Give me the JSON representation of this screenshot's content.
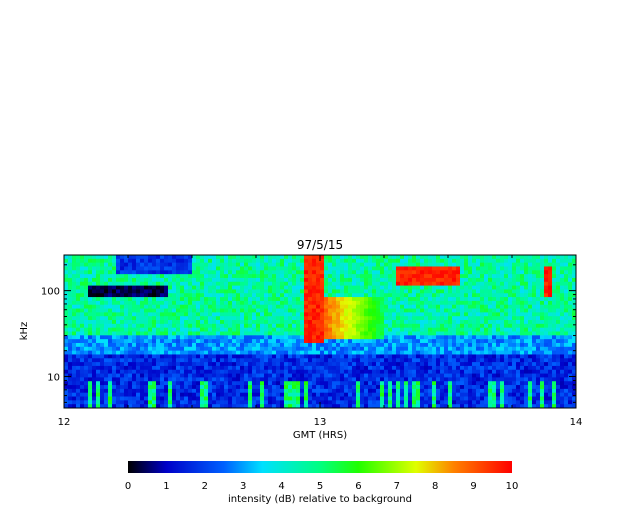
{
  "chart_data": {
    "type": "heatmap",
    "title": "97/5/15",
    "xlabel": "GMT (HRS)",
    "ylabel": "kHz",
    "x_ticks": [
      {
        "value": 12,
        "label": "12"
      },
      {
        "value": 13,
        "label": "13"
      },
      {
        "value": 14,
        "label": "14"
      }
    ],
    "xlim": [
      12,
      14
    ],
    "y_scale": "log",
    "ylim": [
      4.3,
      260
    ],
    "y_ticks": [
      {
        "value": 10,
        "label": "10"
      },
      {
        "value": 100,
        "label": "100"
      }
    ],
    "colorbar": {
      "label": "intensity (dB) relative to background",
      "range": [
        0,
        10
      ],
      "ticks": [
        "0",
        "1",
        "2",
        "3",
        "4",
        "5",
        "6",
        "7",
        "8",
        "9",
        "10"
      ]
    },
    "features": [
      {
        "name": "band",
        "x_range": [
          12.0,
          14.0
        ],
        "y_range": [
          4.3,
          19
        ],
        "intensity": 1
      },
      {
        "name": "band",
        "x_range": [
          12.0,
          14.0
        ],
        "y_range": [
          19,
          260
        ],
        "intensity": 4
      },
      {
        "name": "burst",
        "x_range": [
          12.93,
          13.02
        ],
        "y_range": [
          25,
          260
        ],
        "intensity": 10
      },
      {
        "name": "burst",
        "x_range": [
          13.02,
          13.25
        ],
        "y_range": [
          28,
          80
        ],
        "intensity": 7
      },
      {
        "name": "emission",
        "x_range": [
          13.3,
          13.55
        ],
        "y_range": [
          110,
          200
        ],
        "intensity": 10
      },
      {
        "name": "emission",
        "x_range": [
          13.87,
          13.9
        ],
        "y_range": [
          80,
          200
        ],
        "intensity": 10
      },
      {
        "name": "dropout",
        "x_range": [
          12.1,
          12.4
        ],
        "y_range": [
          85,
          110
        ],
        "intensity": 0
      }
    ]
  },
  "colors": {
    "colorbar_stops": [
      "#000000",
      "#0000ff",
      "#00ffff",
      "#00ff00",
      "#ffff00",
      "#ff0000"
    ],
    "axis": "#000000"
  }
}
